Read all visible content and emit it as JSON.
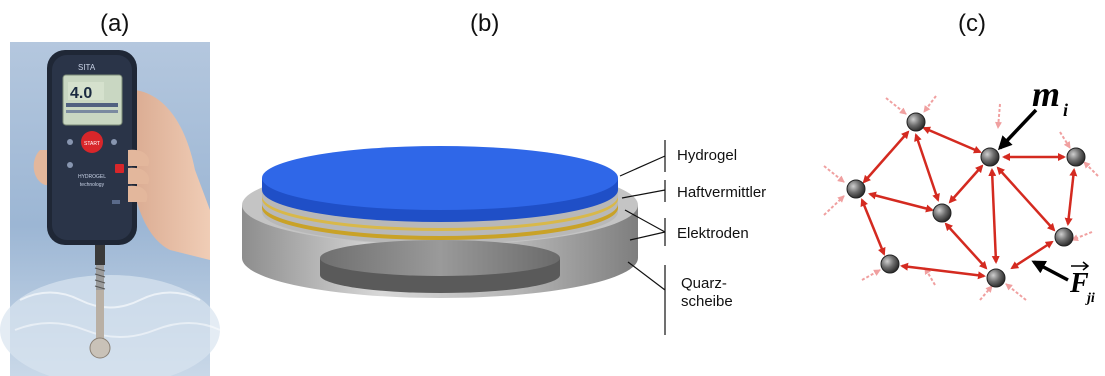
{
  "panels": {
    "a": {
      "label": "(a)"
    },
    "b": {
      "label": "(b)"
    },
    "c": {
      "label": "(c)"
    }
  },
  "device": {
    "brand": "SITA",
    "display_value": "4.0",
    "start_button": "START",
    "product_line1": "HYDROGEL",
    "product_line2": "technology"
  },
  "layers": {
    "hydrogel": "Hydrogel",
    "adhesion": "Haftvermittler",
    "electrodes": "Elektroden",
    "quartz_line1": "Quarz-",
    "quartz_line2": "scheibe"
  },
  "network": {
    "mass_symbol": "m",
    "mass_subscript": "i",
    "force_symbol": "F",
    "force_subscript": "ji",
    "colors": {
      "spring": "#d42a20",
      "node": "#666666",
      "external_force": "#f0a0a0"
    }
  },
  "colors": {
    "hydrogel": "#2a62e0",
    "quartz": "#a8a8a8",
    "electrode": "#c9a227"
  }
}
